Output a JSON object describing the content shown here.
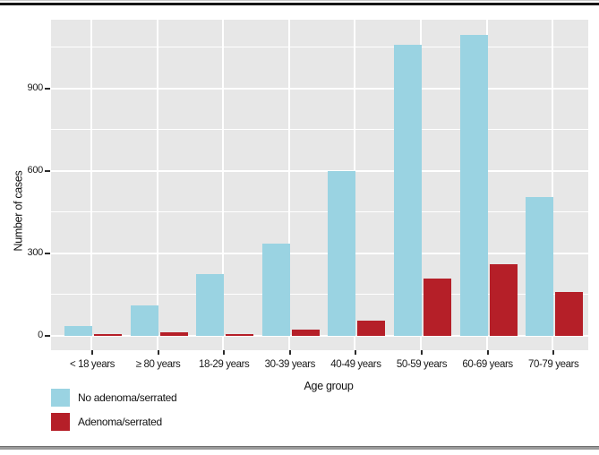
{
  "chart_data": {
    "type": "bar",
    "title": "",
    "categories": [
      "< 18 years",
      "≥ 80 years",
      "18-29 years",
      "30-39 years",
      "40-49 years",
      "50-59 years",
      "60-69 years",
      "70-79 years"
    ],
    "series": [
      {
        "name": "No adenoma/serrated",
        "color": "#9ad3e2",
        "values": [
          35,
          110,
          225,
          335,
          600,
          1060,
          1095,
          505
        ]
      },
      {
        "name": "Adenoma/serrated",
        "color": "#b51f28",
        "values": [
          6,
          12,
          8,
          22,
          57,
          210,
          260,
          160
        ]
      }
    ],
    "xlabel": "Age group",
    "ylabel": "Number of cases",
    "ylim": [
      0,
      1150
    ],
    "yticks": [
      0,
      300,
      600,
      900
    ],
    "minor_gridlines": [
      150,
      450,
      750,
      1050
    ],
    "grid": "white gridlines on gray panel",
    "legend_position": "bottom-left",
    "style": {
      "panel_background": "#e7e7e7",
      "gridline_color": "#ffffff",
      "tick_color": "#2b2b2b",
      "text_color": "#1a1a1a"
    }
  },
  "legend": {
    "items": [
      {
        "label": "No adenoma/serrated",
        "color": "#9ad3e2"
      },
      {
        "label": "Adenoma/serrated",
        "color": "#b51f28"
      }
    ]
  }
}
